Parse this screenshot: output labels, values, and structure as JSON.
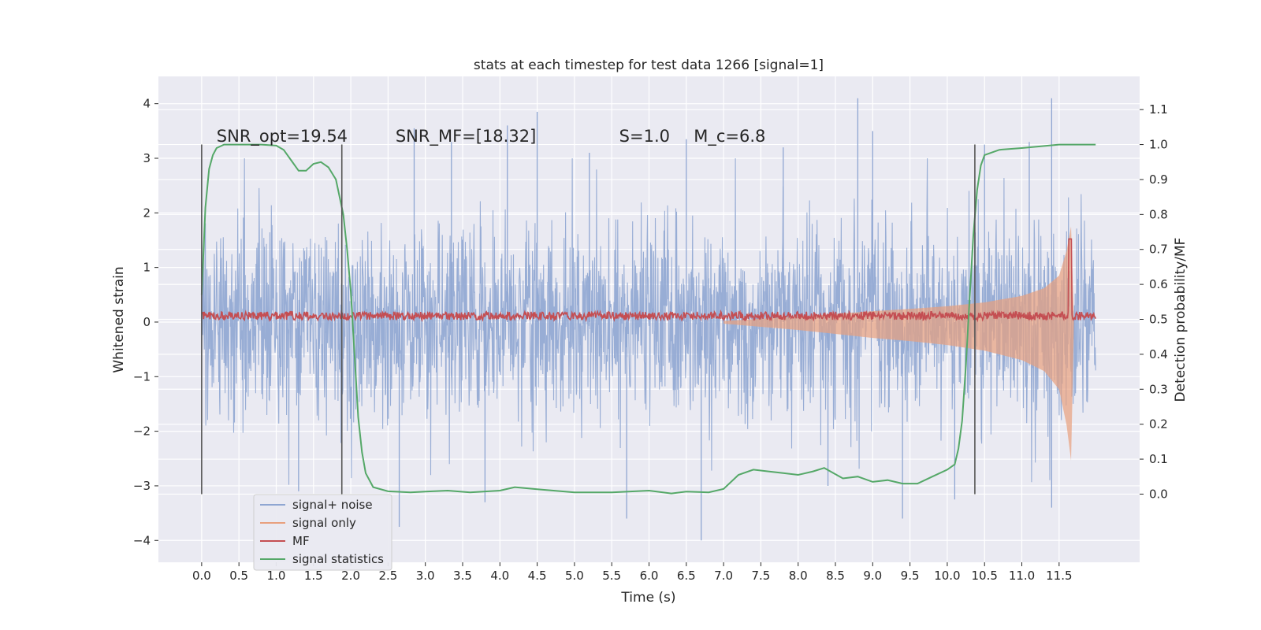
{
  "chart_data": {
    "type": "line",
    "title": "stats at each timestep for test data 1266 [signal=1]",
    "xlabel": "Time (s)",
    "ylabel": "Whitened strain",
    "y2label": "Detection probability/MF",
    "xlim": [
      -0.58,
      12.58
    ],
    "ylim": [
      -4.4,
      4.5
    ],
    "y2lim": [
      -0.195,
      1.195
    ],
    "x_ticks": [
      "0.0",
      "0.5",
      "1.0",
      "1.5",
      "2.0",
      "2.5",
      "3.0",
      "3.5",
      "4.0",
      "4.5",
      "5.0",
      "5.5",
      "6.0",
      "6.5",
      "7.0",
      "7.5",
      "8.0",
      "8.5",
      "9.0",
      "9.5",
      "10.0",
      "10.5",
      "11.0",
      "11.5"
    ],
    "y_ticks": [
      "4",
      "3",
      "2",
      "1",
      "0",
      "−1",
      "−2",
      "−3",
      "−4"
    ],
    "y2_ticks": [
      "1.1",
      "1.0",
      "0.9",
      "0.8",
      "0.7",
      "0.6",
      "0.5",
      "0.4",
      "0.3",
      "0.2",
      "0.1",
      "0.0"
    ],
    "grid": true,
    "legend_placement": "lower-left",
    "annotations": [
      {
        "text": "SNR_opt=19.54",
        "x": 0.2,
        "y": 3.3
      },
      {
        "text": "SNR_MF=[18.32]",
        "x": 2.6,
        "y": 3.3
      },
      {
        "text": "S=1.0",
        "x": 5.6,
        "y": 3.3
      },
      {
        "text": "M_c=6.8",
        "x": 6.6,
        "y": 3.3
      }
    ],
    "vlines": [
      0.0,
      1.88,
      10.37
    ],
    "series": [
      {
        "name": "signal+ noise",
        "axis": "left",
        "color": "#8fa6d2",
        "kind": "noise-band",
        "x_range": [
          0.0,
          11.99
        ],
        "typical_abs": 1.3,
        "peaks": [
          {
            "x": 4.5,
            "y": 3.85
          },
          {
            "x": 8.8,
            "y": 4.1
          },
          {
            "x": 11.4,
            "y": 4.1
          },
          {
            "x": 2.85,
            "y": 3.55
          },
          {
            "x": 4.1,
            "y": 3.6
          },
          {
            "x": 6.5,
            "y": 3.35
          },
          {
            "x": 9.0,
            "y": 3.5
          },
          {
            "x": 10.5,
            "y": 3.25
          },
          {
            "x": 11.1,
            "y": 3.3
          },
          {
            "x": 3.35,
            "y": 3.3
          },
          {
            "x": 5.2,
            "y": 3.1
          },
          {
            "x": 7.8,
            "y": 3.2
          },
          {
            "x": 2.65,
            "y": -3.75
          },
          {
            "x": 3.8,
            "y": -3.3
          },
          {
            "x": 5.7,
            "y": -3.6
          },
          {
            "x": 6.7,
            "y": -4.0
          },
          {
            "x": 9.4,
            "y": -3.6
          },
          {
            "x": 11.4,
            "y": -3.4
          },
          {
            "x": 10.1,
            "y": -3.25
          },
          {
            "x": 1.3,
            "y": -3.1
          },
          {
            "x": 8.4,
            "y": -3.0
          }
        ]
      },
      {
        "name": "signal only",
        "axis": "left",
        "color": "#e8a07e",
        "kind": "chirp-envelope",
        "x": [
          7.0,
          7.5,
          8.0,
          8.5,
          9.0,
          9.5,
          10.0,
          10.5,
          11.0,
          11.3,
          11.5,
          11.6,
          11.66,
          11.7,
          11.99
        ],
        "amplitude": [
          0.02,
          0.06,
          0.1,
          0.15,
          0.2,
          0.24,
          0.29,
          0.36,
          0.48,
          0.62,
          0.85,
          1.3,
          1.75,
          0.0,
          0.0
        ]
      },
      {
        "name": "MF",
        "axis": "right",
        "color": "#c44e52",
        "kind": "noisy-line",
        "x_range": [
          0.0,
          11.99
        ],
        "baseline": 0.51,
        "noise": 0.012,
        "spike": {
          "x": 11.65,
          "y": 0.73
        }
      },
      {
        "name": "signal statistics",
        "axis": "right",
        "color": "#55a868",
        "x": [
          0.0,
          0.05,
          0.1,
          0.15,
          0.2,
          0.3,
          0.5,
          0.8,
          1.0,
          1.1,
          1.2,
          1.3,
          1.4,
          1.5,
          1.6,
          1.7,
          1.8,
          1.9,
          1.95,
          2.0,
          2.05,
          2.1,
          2.15,
          2.2,
          2.3,
          2.5,
          2.8,
          3.0,
          3.3,
          3.6,
          4.0,
          4.2,
          4.5,
          5.0,
          5.5,
          6.0,
          6.3,
          6.5,
          6.8,
          7.0,
          7.2,
          7.4,
          7.6,
          7.8,
          8.0,
          8.2,
          8.35,
          8.6,
          8.8,
          9.0,
          9.2,
          9.4,
          9.6,
          9.8,
          10.0,
          10.1,
          10.15,
          10.2,
          10.25,
          10.3,
          10.35,
          10.4,
          10.45,
          10.5,
          10.7,
          11.0,
          11.5,
          11.99
        ],
        "y": [
          0.57,
          0.82,
          0.93,
          0.97,
          0.99,
          1.0,
          1.0,
          1.0,
          0.997,
          0.985,
          0.955,
          0.925,
          0.925,
          0.945,
          0.95,
          0.935,
          0.9,
          0.8,
          0.7,
          0.58,
          0.4,
          0.22,
          0.12,
          0.06,
          0.02,
          0.008,
          0.005,
          0.007,
          0.01,
          0.005,
          0.01,
          0.02,
          0.014,
          0.005,
          0.005,
          0.01,
          0.002,
          0.007,
          0.005,
          0.015,
          0.055,
          0.07,
          0.065,
          0.06,
          0.055,
          0.065,
          0.075,
          0.045,
          0.05,
          0.035,
          0.04,
          0.03,
          0.03,
          0.05,
          0.07,
          0.085,
          0.13,
          0.21,
          0.37,
          0.56,
          0.74,
          0.87,
          0.94,
          0.97,
          0.985,
          0.99,
          1.0,
          1.0
        ]
      }
    ]
  }
}
